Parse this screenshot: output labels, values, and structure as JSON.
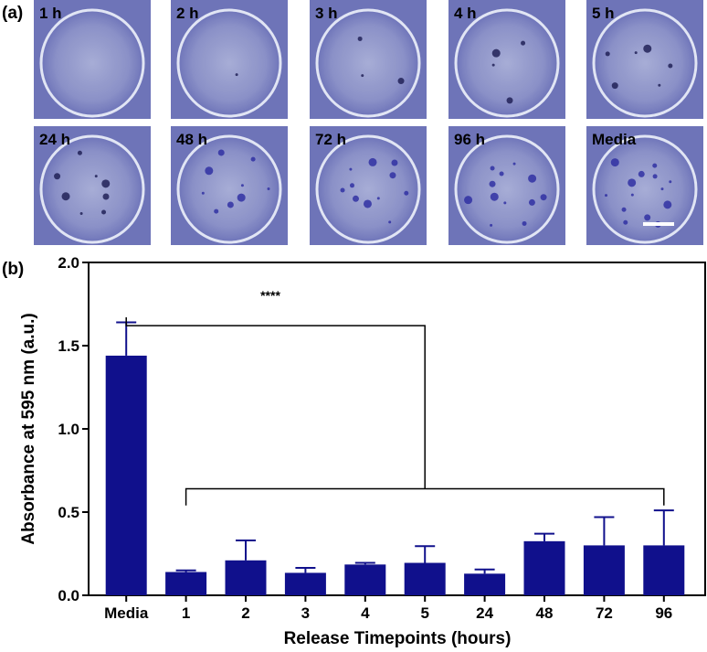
{
  "panel_a": {
    "label": "(a)",
    "images": [
      {
        "label": "1 h"
      },
      {
        "label": "2 h"
      },
      {
        "label": "3 h"
      },
      {
        "label": "4 h"
      },
      {
        "label": "5 h"
      },
      {
        "label": "24 h"
      },
      {
        "label": "48 h"
      },
      {
        "label": "72 h"
      },
      {
        "label": "96 h"
      },
      {
        "label": "Media"
      }
    ]
  },
  "chart_data": {
    "type": "bar",
    "panel_label": "(b)",
    "x_label": "Release Timepoints (hours)",
    "y_label": "Absorbance at 595 nm (a.u.)",
    "categories": [
      "Media",
      "1",
      "2",
      "3",
      "4",
      "5",
      "24",
      "48",
      "72",
      "96"
    ],
    "values": [
      1.44,
      0.14,
      0.21,
      0.135,
      0.185,
      0.195,
      0.13,
      0.325,
      0.3,
      0.3
    ],
    "errors": [
      0.2,
      0.01,
      0.12,
      0.03,
      0.01,
      0.1,
      0.025,
      0.045,
      0.17,
      0.21
    ],
    "color": "#10108c",
    "annotation": "****",
    "ylim": [
      0,
      2
    ],
    "yticks": [
      {
        "value": 0,
        "label": "0.0"
      },
      0.5,
      {
        "value": 1,
        "label": "1.0"
      },
      1.5,
      {
        "value": 2,
        "label": "2.0"
      }
    ]
  }
}
